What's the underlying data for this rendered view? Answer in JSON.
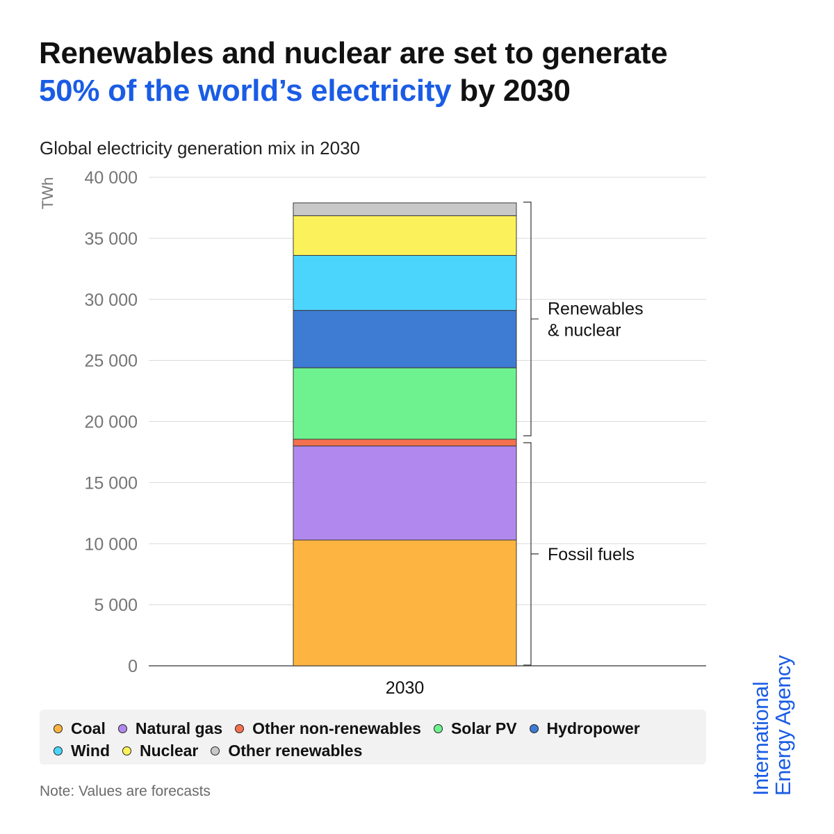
{
  "title": {
    "line1": "Renewables and nuclear are set to generate",
    "highlight": "50% of the world’s electricity",
    "rest": " by 2030",
    "highlight_color": "#1a5ce5"
  },
  "subtitle": "Global electricity generation mix in 2030",
  "chart_data": {
    "type": "bar",
    "stacked": true,
    "categories": [
      "2030"
    ],
    "ylabel": "TWh",
    "ylim": [
      0,
      40000
    ],
    "yticks": [
      0,
      5000,
      10000,
      15000,
      20000,
      25000,
      30000,
      35000,
      40000
    ],
    "ytick_labels": [
      "0",
      "5 000",
      "10 000",
      "15 000",
      "20 000",
      "25 000",
      "30 000",
      "35 000",
      "40 000"
    ],
    "grid": true,
    "series": [
      {
        "name": "Coal",
        "values": [
          10300
        ],
        "color": "#fdb441"
      },
      {
        "name": "Natural gas",
        "values": [
          7700
        ],
        "color": "#b189ee"
      },
      {
        "name": "Other non-renewables",
        "values": [
          550
        ],
        "color": "#f4714f"
      },
      {
        "name": "Solar PV",
        "values": [
          5850
        ],
        "color": "#6ef28f"
      },
      {
        "name": "Hydropower",
        "values": [
          4700
        ],
        "color": "#3e7bd3"
      },
      {
        "name": "Wind",
        "values": [
          4500
        ],
        "color": "#4bd5fd"
      },
      {
        "name": "Nuclear",
        "values": [
          3250
        ],
        "color": "#fbf25b"
      },
      {
        "name": "Other renewables",
        "values": [
          1050
        ],
        "color": "#c8c8c8"
      }
    ],
    "annotations": [
      {
        "text_lines": [
          "Renewables",
          "& nuclear"
        ],
        "from": 18550,
        "to": 37900
      },
      {
        "text_lines": [
          "Fossil fuels"
        ],
        "from": 0,
        "to": 18550
      }
    ]
  },
  "legend": {
    "rows": [
      [
        {
          "label": "Coal",
          "color": "#fdb441"
        },
        {
          "label": "Natural gas",
          "color": "#b189ee"
        },
        {
          "label": "Other non-renewables",
          "color": "#f4714f"
        },
        {
          "label": "Solar PV",
          "color": "#6ef28f"
        },
        {
          "label": "Hydropower",
          "color": "#3e7bd3"
        }
      ],
      [
        {
          "label": "Wind",
          "color": "#4bd5fd"
        },
        {
          "label": "Nuclear",
          "color": "#fbf25b"
        },
        {
          "label": "Other renewables",
          "color": "#c8c8c8"
        }
      ]
    ]
  },
  "note": "Note: Values are forecasts",
  "logo": {
    "line1": "International",
    "line2": "Energy Agency",
    "color": "#1a5ce5"
  }
}
